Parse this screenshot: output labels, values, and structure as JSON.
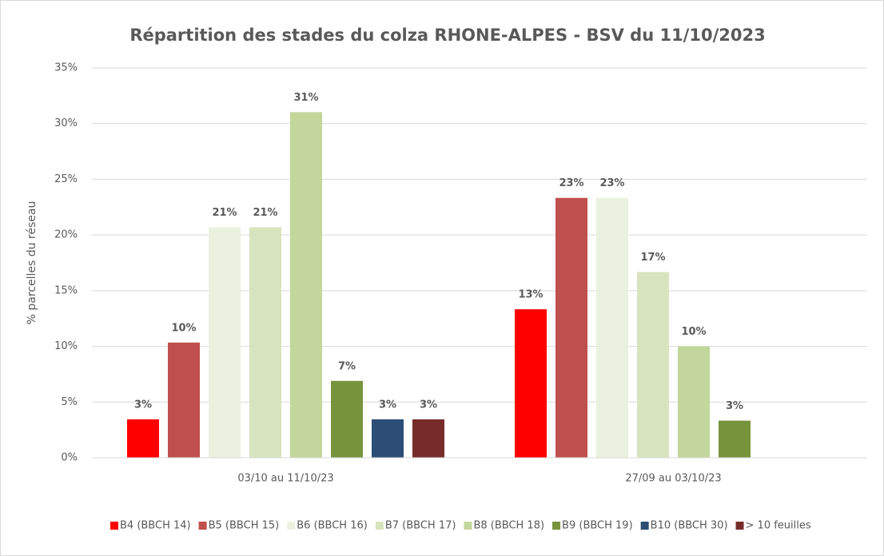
{
  "chart_data": {
    "type": "bar",
    "title": "Répartition des stades du colza RHONE-ALPES - BSV du 11/10/2023",
    "y_label": "% parcelles du réseau",
    "categories": [
      "03/10 au 11/10/23",
      "27/09 au 03/10/23"
    ],
    "ylim": [
      0,
      35
    ],
    "yticks": [
      {
        "value": 0,
        "label": "0%"
      },
      {
        "value": 5,
        "label": "5%"
      },
      {
        "value": 10,
        "label": "10%"
      },
      {
        "value": 15,
        "label": "15%"
      },
      {
        "value": 20,
        "label": "20%"
      },
      {
        "value": 25,
        "label": "25%"
      },
      {
        "value": 30,
        "label": "30%"
      },
      {
        "value": 35,
        "label": "35%"
      }
    ],
    "grid": true,
    "legend": "bottom",
    "series": [
      {
        "name": "B4 (BBCH 14)",
        "color": "#ff0000",
        "values": [
          3.45,
          13.33
        ],
        "value_labels": [
          "3%",
          "13%"
        ]
      },
      {
        "name": "B5 (BBCH 15)",
        "color": "#c0504d",
        "values": [
          10.34,
          23.33
        ],
        "value_labels": [
          "10%",
          "23%"
        ]
      },
      {
        "name": "B6 (BBCH 16)",
        "color": "#ebf1de",
        "values": [
          20.69,
          23.33
        ],
        "value_labels": [
          "21%",
          "23%"
        ]
      },
      {
        "name": "B7 (BBCH 17)",
        "color": "#d7e4bd",
        "values": [
          20.69,
          16.67
        ],
        "value_labels": [
          "21%",
          "17%"
        ]
      },
      {
        "name": "B8 (BBCH 18)",
        "color": "#c3d69b",
        "values": [
          31.03,
          10
        ],
        "value_labels": [
          "31%",
          "10%"
        ]
      },
      {
        "name": "B9 (BBCH 19)",
        "color": "#77933c",
        "values": [
          6.9,
          3.33
        ],
        "value_labels": [
          "7%",
          "3%"
        ]
      },
      {
        "name": "B10 (BBCH 30)",
        "color": "#2c4d75",
        "values": [
          3.45,
          null
        ],
        "value_labels": [
          "3%",
          null
        ]
      },
      {
        "name": "> 10 feuilles",
        "color": "#772c2a",
        "values": [
          3.45,
          null
        ],
        "value_labels": [
          "3%",
          null
        ]
      }
    ]
  }
}
